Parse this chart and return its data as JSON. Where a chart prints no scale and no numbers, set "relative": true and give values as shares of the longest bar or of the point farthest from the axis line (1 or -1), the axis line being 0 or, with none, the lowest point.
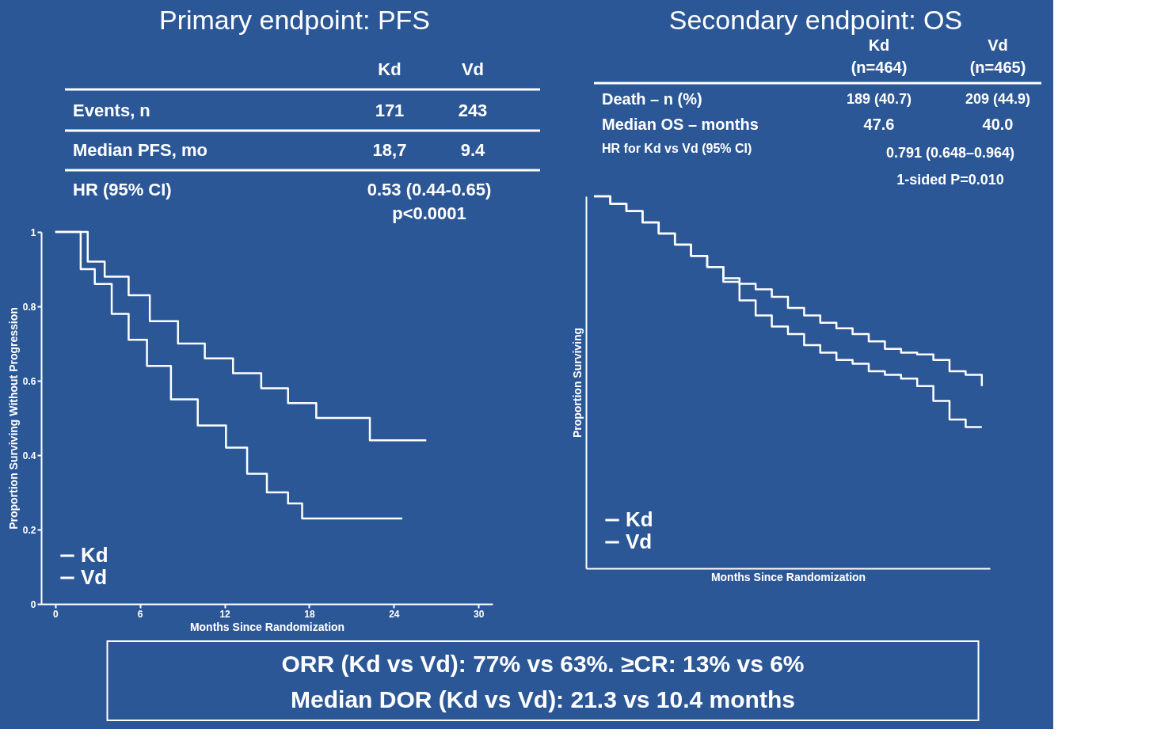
{
  "chart_data": [
    {
      "type": "step",
      "title": "Primary endpoint: PFS",
      "xlabel": "Months Since Randomization",
      "ylabel": "Proportion Surviving Without Progression",
      "xlim": [
        -1,
        31
      ],
      "ylim": [
        0,
        1.0
      ],
      "xticks": [
        0,
        6,
        12,
        18,
        24,
        30
      ],
      "yticks": [
        0,
        0.2,
        0.4,
        0.6,
        0.8,
        1.0
      ],
      "grid": false,
      "legend": "bottom left",
      "marker": "none",
      "line_style": "solid",
      "series": [
        {
          "name": "Kd",
          "color": "#ffffff",
          "x": [
            0,
            2.3,
            3.5,
            5.2,
            6.7,
            8.7,
            10.6,
            12.6,
            14.6,
            16.5,
            18.5,
            21.4,
            22.3,
            26.3
          ],
          "values": [
            1.0,
            0.92,
            0.88,
            0.83,
            0.76,
            0.7,
            0.66,
            0.62,
            0.58,
            0.54,
            0.5,
            0.5,
            0.44,
            0.44
          ]
        },
        {
          "name": "Vd",
          "color": "#ffffff",
          "x": [
            0,
            1.8,
            2.8,
            4.0,
            5.2,
            6.5,
            8.2,
            10.1,
            12.1,
            13.6,
            15.0,
            16.5,
            17.5,
            23.4,
            24.6
          ],
          "values": [
            1.0,
            0.9,
            0.86,
            0.78,
            0.71,
            0.64,
            0.55,
            0.48,
            0.42,
            0.35,
            0.3,
            0.27,
            0.23,
            0.23,
            0.23
          ]
        }
      ],
      "annotations": [
        "Kd",
        "Vd",
        "Events, n",
        "171",
        "243",
        "Median PFS, mo",
        "18,7",
        "9.4",
        "HR (95% CI)",
        "0.53 (0.44-0.65)",
        "p<0.0001"
      ]
    },
    {
      "type": "step",
      "title": "Secondary endpoint: OS",
      "xlabel": "Months Since Randomization",
      "ylabel": "Proportion Surviving",
      "relative": true,
      "grid": false,
      "legend": "bottom left",
      "marker": "none",
      "line_style": "solid",
      "categories": [
        null,
        null,
        null,
        null,
        null,
        null,
        null,
        null,
        null,
        null,
        null,
        null,
        null,
        null,
        null,
        null,
        null,
        null,
        null,
        null,
        null,
        null,
        null,
        null,
        null
      ],
      "series": [
        {
          "name": "Kd",
          "color": "#ffffff",
          "values": [
            1.0,
            0.98,
            0.96,
            0.93,
            0.9,
            0.87,
            0.84,
            0.81,
            0.78,
            0.765,
            0.75,
            0.73,
            0.7,
            0.68,
            0.66,
            0.645,
            0.63,
            0.61,
            0.59,
            0.58,
            0.575,
            0.56,
            0.53,
            0.52,
            0.49
          ]
        },
        {
          "name": "Vd",
          "color": "#ffffff",
          "values": [
            1.0,
            0.98,
            0.96,
            0.93,
            0.9,
            0.87,
            0.84,
            0.81,
            0.77,
            0.72,
            0.68,
            0.65,
            0.63,
            0.6,
            0.58,
            0.56,
            0.55,
            0.53,
            0.52,
            0.51,
            0.49,
            0.45,
            0.4,
            0.38,
            0.38
          ]
        }
      ],
      "annotations": [
        "Kd",
        "Vd",
        "(n=464)",
        "(n=465)",
        "Death – n (%)",
        "189 (40.7)",
        "209 (44.9)",
        "Median OS – months",
        "47.6",
        "40.0",
        "HR for Kd vs Vd (95% CI)",
        "0.791 (0.648–0.964)",
        "1-sided P=0.010"
      ]
    },
    {
      "type": "other",
      "annotations": [
        "ORR (Kd vs Vd): 77% vs 63%. ≥CR: 13% vs 6%",
        "Median DOR (Kd vs Vd): 21.3 vs 10.4 months"
      ]
    }
  ]
}
